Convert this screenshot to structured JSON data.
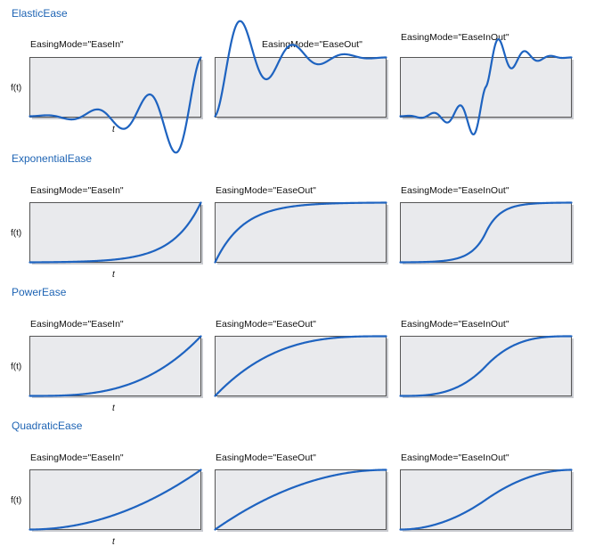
{
  "sections": [
    {
      "name": "ElasticEase",
      "plots": [
        {
          "mode_label": "EasingMode=\"EaseIn\"",
          "mode": "in"
        },
        {
          "mode_label": "EasingMode=\"EaseOut\"",
          "mode": "out"
        },
        {
          "mode_label": "EasingMode=\"EaseInOut\"",
          "mode": "inout"
        }
      ],
      "y_axis_label": "f(t)",
      "x_axis_label": "t"
    },
    {
      "name": "ExponentialEase",
      "plots": [
        {
          "mode_label": "EasingMode=\"EaseIn\"",
          "mode": "in"
        },
        {
          "mode_label": "EasingMode=\"EaseOut\"",
          "mode": "out"
        },
        {
          "mode_label": "EasingMode=\"EaseInOut\"",
          "mode": "inout"
        }
      ],
      "y_axis_label": "f(t)",
      "x_axis_label": "t"
    },
    {
      "name": "PowerEase",
      "plots": [
        {
          "mode_label": "EasingMode=\"EaseIn\"",
          "mode": "in"
        },
        {
          "mode_label": "EasingMode=\"EaseOut\"",
          "mode": "out"
        },
        {
          "mode_label": "EasingMode=\"EaseInOut\"",
          "mode": "inout"
        }
      ],
      "y_axis_label": "f(t)",
      "x_axis_label": "t"
    },
    {
      "name": "QuadraticEase",
      "plots": [
        {
          "mode_label": "EasingMode=\"EaseIn\"",
          "mode": "in"
        },
        {
          "mode_label": "EasingMode=\"EaseOut\"",
          "mode": "out"
        },
        {
          "mode_label": "EasingMode=\"EaseInOut\"",
          "mode": "inout"
        }
      ],
      "y_axis_label": "f(t)",
      "x_axis_label": "t"
    }
  ],
  "colors": {
    "title": "#1e64b4",
    "curve": "#1e63c0",
    "plot_background": "#e9eaed",
    "plot_border": "#555555"
  }
}
